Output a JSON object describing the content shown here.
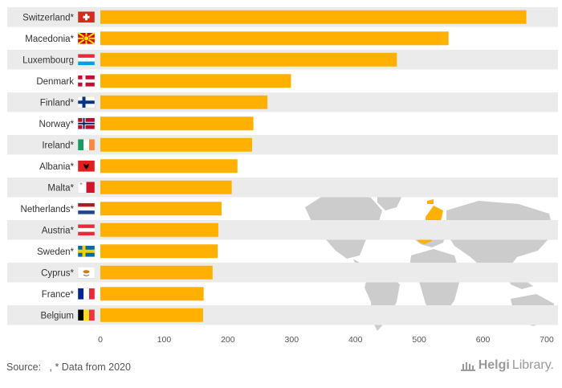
{
  "chart_data": {
    "type": "bar",
    "orientation": "horizontal",
    "categories": [
      "Switzerland*",
      "Macedonia*",
      "Luxembourg",
      "Denmark",
      "Finland*",
      "Norway*",
      "Ireland*",
      "Albania*",
      "Malta*",
      "Netherlands*",
      "Austria*",
      "Sweden*",
      "Cyprus*",
      "France*",
      "Belgium"
    ],
    "values": [
      668,
      546,
      465,
      299,
      262,
      240,
      238,
      215,
      206,
      190,
      185,
      184,
      176,
      162,
      161
    ],
    "xlim": [
      0,
      700
    ],
    "xticks": [
      "0",
      "100",
      "200",
      "300",
      "400",
      "500",
      "600",
      "700"
    ],
    "bar_color": "#FFB000",
    "grid": false,
    "row_stripes": true
  },
  "flags": [
    "ch-flag-icon",
    "mk-flag-icon",
    "lu-flag-icon",
    "dk-flag-icon",
    "fi-flag-icon",
    "no-flag-icon",
    "ie-flag-icon",
    "al-flag-icon",
    "mt-flag-icon",
    "nl-flag-icon",
    "at-flag-icon",
    "se-flag-icon",
    "cy-flag-icon",
    "fr-flag-icon",
    "be-flag-icon"
  ],
  "map": {
    "land_color": "#CCCCCC",
    "highlight_color": "#FFB000"
  },
  "footer": {
    "source": "Source:   , * Data from 2020"
  },
  "brand": {
    "part1": "Helgi",
    "part2": "Library."
  }
}
